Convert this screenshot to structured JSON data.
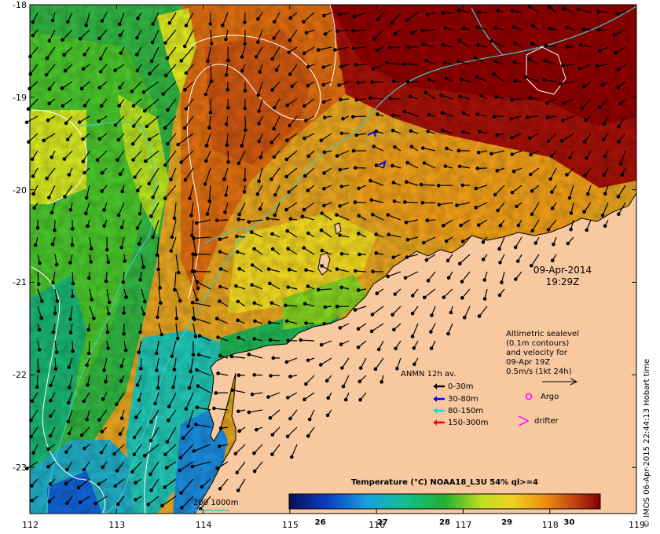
{
  "map": {
    "lon_ticks": [
      "112",
      "113",
      "114",
      "115",
      "116",
      "117",
      "118",
      "119"
    ],
    "lat_ticks": [
      "-18",
      "-19",
      "-20",
      "-21",
      "-22",
      "-23"
    ],
    "lon_range": [
      112,
      119
    ],
    "lat_range": [
      -23.5,
      -18
    ],
    "land_color": "#f8c8a0",
    "ocean_palette": [
      "#0a2090",
      "#1a70d0",
      "#20c0c0",
      "#10b050",
      "#70d020",
      "#e8e020",
      "#f0a010",
      "#c85010",
      "#900000"
    ]
  },
  "stamp": {
    "date": "09-Apr-2014",
    "time": "19:29Z"
  },
  "altimetry_note": {
    "line1": "Altimetric sealevel",
    "line2": "(0.1m contours)",
    "line3": "and velocity for",
    "line4": "09-Apr 19Z",
    "line5": "0.5m/s (1kt 24h)"
  },
  "legend": {
    "title": "ANMN 12h av.",
    "items": [
      {
        "label": "0-30m",
        "color": "#000000"
      },
      {
        "label": "30-80m",
        "color": "#0000ff"
      },
      {
        "label": "80-150m",
        "color": "#00e0e0"
      },
      {
        "label": "150-300m",
        "color": "#ff0000"
      }
    ],
    "argo_label": "Argo",
    "drifter_label": "drifter",
    "argo_color": "#ff00ff",
    "drifter_color": "#ff00ff"
  },
  "bathymetry_legend": {
    "label": "200  1000m",
    "color": "#40c0c0"
  },
  "colorbar": {
    "title": "Temperature (°C) NOAA18_L3U 54% ql>=4",
    "ticks": [
      "26",
      "27",
      "28",
      "29",
      "30"
    ],
    "range": [
      25.5,
      30.5
    ]
  },
  "credit": "© IMOS 06-Apr-2015 22:44:13 Hobart time"
}
